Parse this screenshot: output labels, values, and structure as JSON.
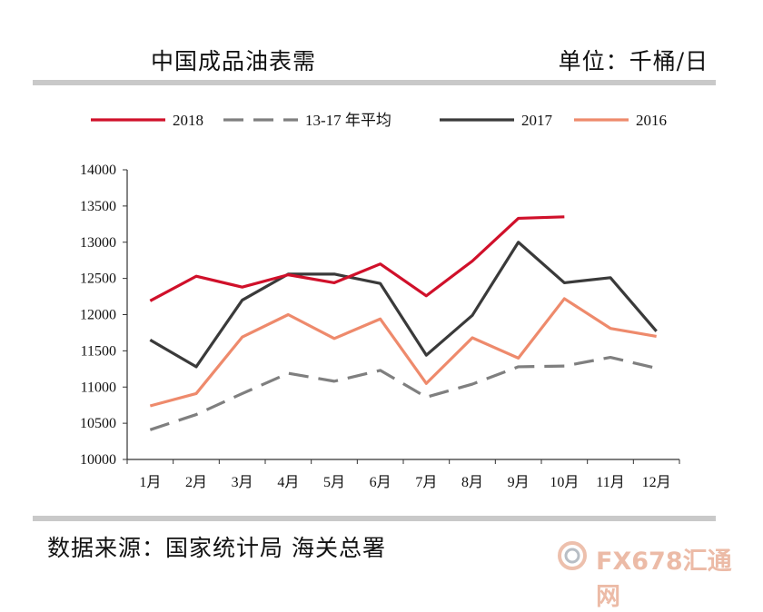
{
  "header": {
    "title": "中国成品油表需",
    "unit": "单位：千桶/日"
  },
  "footer": {
    "source": "数据来源：国家统计局  海关总署"
  },
  "watermark": {
    "text": "FX678汇通网"
  },
  "chart_data": {
    "type": "line",
    "title": "中国成品油表需",
    "categories": [
      "1月",
      "2月",
      "3月",
      "4月",
      "5月",
      "6月",
      "7月",
      "8月",
      "9月",
      "10月",
      "11月",
      "12月"
    ],
    "ylim": [
      10000,
      14000
    ],
    "yticks": [
      10000,
      10500,
      11000,
      11500,
      12000,
      12500,
      13000,
      13500,
      14000
    ],
    "grid": false,
    "legend_position": "top",
    "series": [
      {
        "name": "2018",
        "color": "#d0102a",
        "dash": "solid",
        "values": [
          12190,
          12530,
          12380,
          12550,
          12440,
          12700,
          12260,
          12740,
          13330,
          13350,
          null,
          null
        ]
      },
      {
        "name": "13-17 年平均",
        "color": "#7f7f7f",
        "dash": "dashed",
        "values": [
          10410,
          10620,
          10910,
          11190,
          11080,
          11230,
          10860,
          11040,
          11280,
          11290,
          11410,
          11260
        ]
      },
      {
        "name": "2017",
        "color": "#3a3a3a",
        "dash": "solid",
        "values": [
          11650,
          11280,
          12200,
          12560,
          12560,
          12430,
          11440,
          11990,
          13000,
          12440,
          12510,
          11770
        ]
      },
      {
        "name": "2016",
        "color": "#ee8a6c",
        "dash": "solid",
        "values": [
          10740,
          10910,
          11690,
          12000,
          11670,
          11940,
          11050,
          11680,
          11400,
          12220,
          11810,
          11700
        ]
      }
    ]
  }
}
